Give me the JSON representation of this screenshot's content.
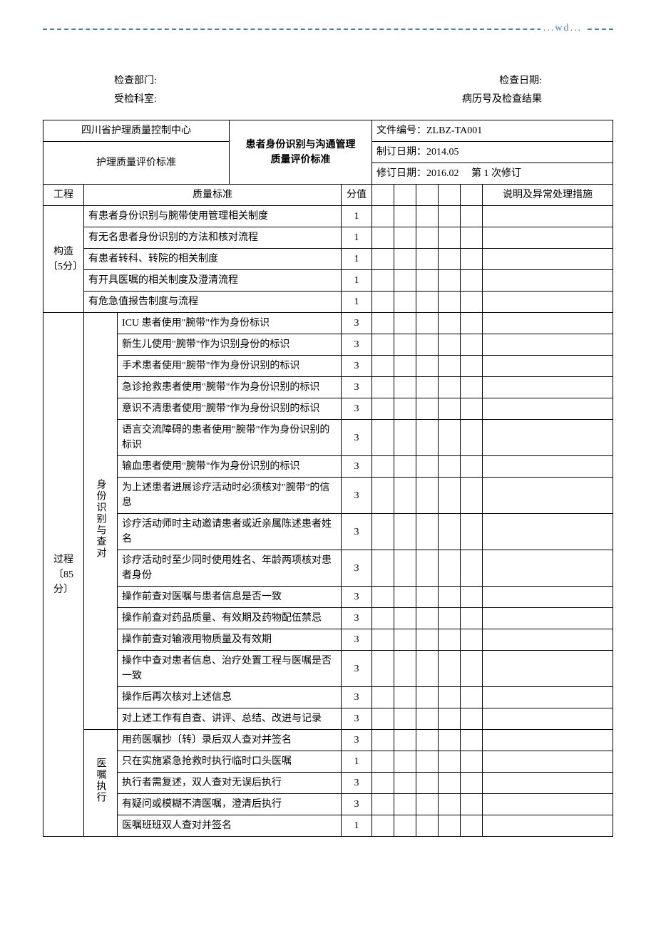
{
  "header": {
    "wd": "...wd..."
  },
  "meta": {
    "check_dept_label": "检查部门:",
    "check_date_label": "检查日期:",
    "inspected_label": "受检科室:",
    "record_label": "病历号及检查结果"
  },
  "doc_header": {
    "org": "四川省护理质量控制中心",
    "standard_label": "护理质量评价标准",
    "title_l1": "患者身份识别与沟通管理",
    "title_l2": "质量评价标准",
    "doc_no_label": "文件编号：",
    "doc_no": "ZLBZ-TA001",
    "create_label": "制订日期：",
    "create_date": "2014.05",
    "revise_label": "修订日期：",
    "revise_date": "2016.02",
    "revise_count": "第 1 次修订"
  },
  "columns": {
    "project": "工程",
    "standard": "质量标准",
    "score": "分值",
    "explain": "说明及异常处理措施"
  },
  "sections": {
    "structure": {
      "label": "构造〔5分〕"
    },
    "process": {
      "label": "过程〔85分〕"
    },
    "identity": {
      "label": "身份识别与查对"
    },
    "order_exec": {
      "label": "医嘱执行"
    }
  },
  "structure_rows": [
    {
      "text": "有患者身份识别与腕带使用管理相关制度",
      "score": "1"
    },
    {
      "text": "有无名患者身份识别的方法和核对流程",
      "score": "1"
    },
    {
      "text": "有患者转科、转院的相关制度",
      "score": "1"
    },
    {
      "text": "有开具医嘱的相关制度及澄清流程",
      "score": "1"
    },
    {
      "text": "有危急值报告制度与流程",
      "score": "1"
    }
  ],
  "identity_rows": [
    {
      "text": "ICU 患者使用\"腕带\"作为身份标识",
      "score": "3"
    },
    {
      "text": "新生儿使用\"腕带\"作为识别身份的标识",
      "score": "3"
    },
    {
      "text": "手术患者使用\"腕带\"作为身份识别的标识",
      "score": "3"
    },
    {
      "text": "急诊抢救患者使用\"腕带\"作为身份识别的标识",
      "score": "3"
    },
    {
      "text": "意识不清患者使用\"腕带\"作为身份识别的标识",
      "score": "3"
    },
    {
      "text": "语言交流障碍的患者使用\"腕带\"作为身份识别的标识",
      "score": "3"
    },
    {
      "text": "输血患者使用\"腕带\"作为身份识别的标识",
      "score": "3"
    },
    {
      "text": "为上述患者进展诊疗活动时必须核对\"腕带\"的信息",
      "score": "3"
    },
    {
      "text": "诊疗活动师时主动邀请患者或近亲属陈述患者姓名",
      "score": "3"
    },
    {
      "text": "诊疗活动时至少同时使用姓名、年龄两项核对患者身份",
      "score": "3"
    },
    {
      "text": "操作前查对医嘱与患者信息是否一致",
      "score": "3"
    },
    {
      "text": "操作前查对药品质量、有效期及药物配伍禁忌",
      "score": "3"
    },
    {
      "text": "操作前查对输液用物质量及有效期",
      "score": "3"
    },
    {
      "text": "操作中查对患者信息、治疗处置工程与医嘱是否一致",
      "score": "3"
    },
    {
      "text": "操作后再次核对上述信息",
      "score": "3"
    },
    {
      "text": "对上述工作有自查、讲评、总结、改进与记录",
      "score": "3"
    }
  ],
  "order_rows": [
    {
      "text": "用药医嘱抄〔转〕录后双人查对并签名",
      "score": "3"
    },
    {
      "text": "只在实施紧急抢救时执行临时口头医嘱",
      "score": "1"
    },
    {
      "text": "执行者需复述，双人查对无误后执行",
      "score": "3"
    },
    {
      "text": "有疑问或模糊不清医嘱，澄清后执行",
      "score": "3"
    },
    {
      "text": "医嘱班班双人查对并签名",
      "score": "1"
    }
  ]
}
